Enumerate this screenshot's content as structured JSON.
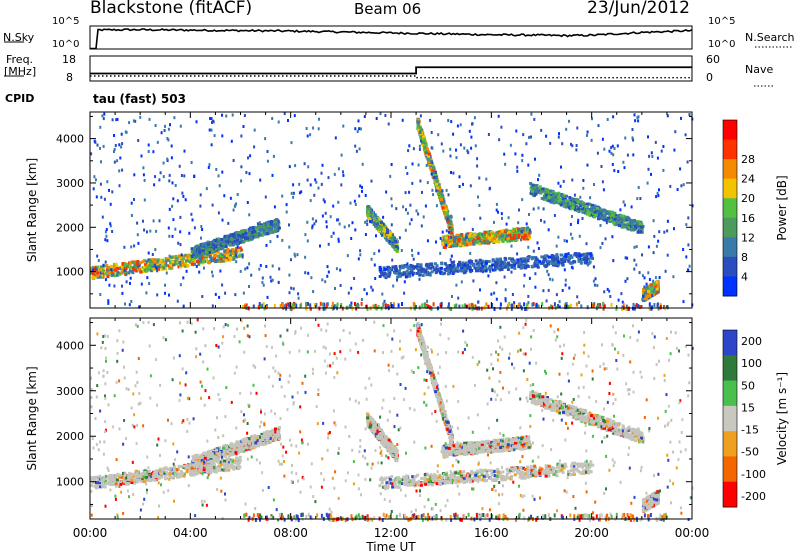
{
  "header": {
    "left": "Blackstone (fitACF)",
    "center": "Beam 06",
    "right": "23/Jun/2012"
  },
  "panel_labels": {
    "nsky": "N.Sky",
    "nsearch": "N.Search",
    "freq_line1": "Freq.",
    "freq_line2": "[MHz]",
    "nave": "Nave",
    "cpid": "CPID",
    "program": "tau (fast) 503"
  },
  "small_axes": {
    "noise_ticks": [
      "10^5",
      "10^0"
    ],
    "noise_ticks_right": [
      "10^5",
      "10^0"
    ],
    "freq_ticks": [
      "18",
      "8"
    ],
    "nave_ticks": [
      "60",
      "0"
    ]
  },
  "colors": {
    "power": [
      "#0033ff",
      "#2a4dbf",
      "#3a7aaa",
      "#4c9a5c",
      "#52c041",
      "#f2c400",
      "#f48a00",
      "#ff3300",
      "#ff0000"
    ],
    "velocity": [
      "#2d46c9",
      "#2e7a3b",
      "#4bbf4b",
      "#c8c8c0",
      "#f0a020",
      "#f36600",
      "#ff0000"
    ],
    "ground_gray": "#c4c4bc"
  },
  "chart_data": [
    {
      "type": "line",
      "name": "noise",
      "series": [
        {
          "name": "N.Sky",
          "x": [
            0,
            0.3,
            2,
            4,
            6,
            8,
            10,
            12,
            13,
            14,
            16,
            18,
            19,
            20,
            21,
            22,
            23,
            24
          ],
          "y": [
            0.82,
            0.83,
            0.84,
            0.82,
            0.8,
            0.78,
            0.74,
            0.7,
            0.68,
            0.66,
            0.62,
            0.6,
            0.58,
            0.6,
            0.66,
            0.72,
            0.76,
            0.8
          ]
        }
      ]
    },
    {
      "type": "line",
      "name": "frequency",
      "series": [
        {
          "name": "Freq.",
          "x": [
            0,
            13,
            13,
            24
          ],
          "y": [
            11,
            11,
            13.5,
            13.5
          ]
        },
        {
          "name": "Nave",
          "x": [
            0,
            13,
            13,
            24
          ],
          "y": [
            12,
            12,
            8,
            8
          ]
        }
      ]
    },
    {
      "type": "heatmap",
      "name": "power",
      "xlabel": "Time UT",
      "ylabel": "Slant Range [km]",
      "xlim": [
        0,
        24
      ],
      "ylim": [
        180,
        4600
      ],
      "xticks": [
        "00:00",
        "04:00",
        "08:00",
        "12:00",
        "16:00",
        "20:00",
        "00:00"
      ],
      "yticks": [
        1000,
        2000,
        3000,
        4000
      ],
      "colorbar": {
        "label": "Power [dB]",
        "ticks": [
          4,
          8,
          12,
          16,
          20,
          24,
          28
        ]
      },
      "features": [
        {
          "t0": 0,
          "t1": 6,
          "r0": 1000,
          "r1": 1450,
          "peak": 26
        },
        {
          "t0": 4,
          "t1": 7.5,
          "r0": 1450,
          "r1": 2100,
          "peak": 14
        },
        {
          "t0": 11,
          "t1": 12.2,
          "r0": 2400,
          "r1": 1600,
          "peak": 20
        },
        {
          "t0": 13,
          "t1": 14.4,
          "r0": 4400,
          "r1": 1900,
          "peak": 24
        },
        {
          "t0": 14,
          "t1": 17.5,
          "r0": 1700,
          "r1": 1900,
          "peak": 26
        },
        {
          "t0": 17.5,
          "t1": 22,
          "r0": 2900,
          "r1": 2000,
          "peak": 16
        },
        {
          "t0": 11.5,
          "t1": 20,
          "r0": 1000,
          "r1": 1350,
          "peak": 10
        },
        {
          "t0": 22,
          "t1": 22.6,
          "r0": 500,
          "r1": 700,
          "peak": 26
        }
      ]
    },
    {
      "type": "heatmap",
      "name": "velocity",
      "xlabel": "Time UT",
      "ylabel": "Slant Range [km]",
      "xlim": [
        0,
        24
      ],
      "ylim": [
        180,
        4600
      ],
      "xticks": [
        "00:00",
        "04:00",
        "08:00",
        "12:00",
        "16:00",
        "20:00",
        "00:00"
      ],
      "yticks": [
        1000,
        2000,
        3000,
        4000
      ],
      "colorbar": {
        "label": "Velocity [m s⁻¹]",
        "ticks": [
          200,
          100,
          50,
          15,
          -15,
          -50,
          -100,
          -200
        ]
      }
    }
  ]
}
